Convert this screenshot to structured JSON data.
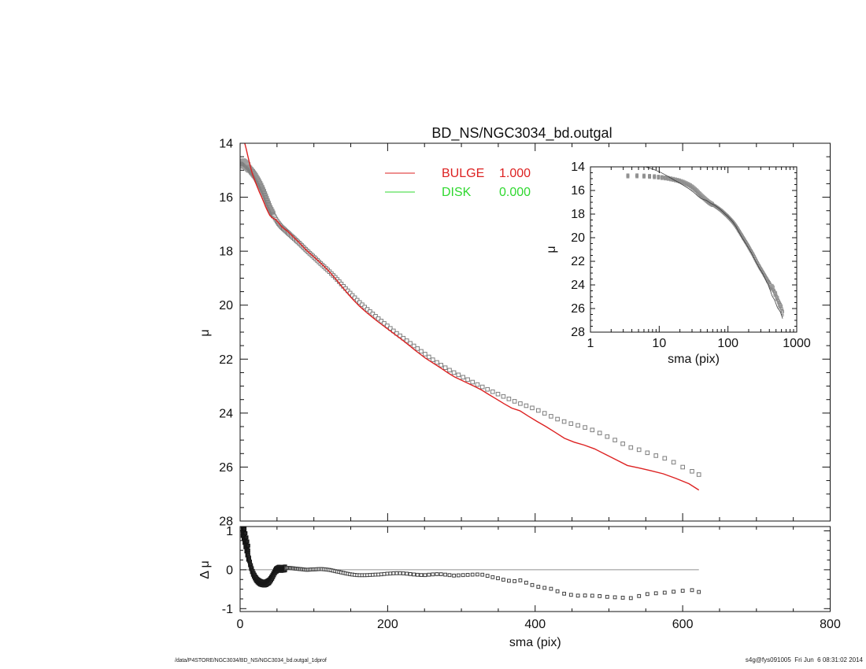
{
  "title": "BD_NS/NGC3034_bd.outgal",
  "footer": {
    "left": "/data/P4STORE/NGC3034/BD_NS/NGC3034_bd.outgal_1dprof",
    "right": "s4g@fys091005  Fri Jun  6 08:31:02 2014"
  },
  "colors": {
    "bulge": "#dd2222",
    "disk": "#2fd82f",
    "data_gray": "#7e7e7e",
    "residual_dark": "#3f3f3f",
    "axis": "#111111",
    "zero_line": "#909090",
    "inset_model": "#3c3c3c"
  },
  "legend": {
    "entries": [
      {
        "label": "BULGE",
        "value": "1.000",
        "color": "#dd2222"
      },
      {
        "label": "DISK",
        "value": "0.000",
        "color": "#2fd82f"
      }
    ]
  },
  "chart_data": [
    {
      "id": "main-profile",
      "type": "scatter",
      "title": "BD_NS/NGC3034_bd.outgal",
      "xlabel": "sma (pix)",
      "ylabel": "μ",
      "xlim": [
        0,
        800
      ],
      "ylim": [
        28,
        14
      ],
      "x_ticks": [
        0,
        200,
        400,
        600,
        800
      ],
      "y_ticks": [
        14,
        16,
        18,
        20,
        22,
        24,
        26,
        28
      ],
      "grid": false,
      "series": [
        {
          "name": "observed surface-brightness profile",
          "marker": "open-square",
          "color": "#7e7e7e",
          "points": [
            [
              1,
              14.82
            ],
            [
              3,
              14.77
            ],
            [
              5,
              14.76
            ],
            [
              8,
              14.82
            ],
            [
              10,
              14.88
            ],
            [
              13,
              14.96
            ],
            [
              16,
              15.06
            ],
            [
              20,
              15.2
            ],
            [
              24,
              15.38
            ],
            [
              28,
              15.58
            ],
            [
              32,
              15.82
            ],
            [
              36,
              16.1
            ],
            [
              40,
              16.38
            ],
            [
              44,
              16.6
            ],
            [
              48,
              16.8
            ],
            [
              52,
              16.97
            ],
            [
              56,
              17.1
            ],
            [
              60,
              17.2
            ],
            [
              70,
              17.45
            ],
            [
              80,
              17.7
            ],
            [
              90,
              17.97
            ],
            [
              100,
              18.22
            ],
            [
              110,
              18.48
            ],
            [
              120,
              18.73
            ],
            [
              130,
              19.0
            ],
            [
              140,
              19.3
            ],
            [
              150,
              19.58
            ],
            [
              160,
              19.85
            ],
            [
              170,
              20.1
            ],
            [
              180,
              20.33
            ],
            [
              190,
              20.56
            ],
            [
              200,
              20.78
            ],
            [
              210,
              21.0
            ],
            [
              220,
              21.2
            ],
            [
              230,
              21.4
            ],
            [
              240,
              21.6
            ],
            [
              250,
              21.8
            ],
            [
              260,
              22.0
            ],
            [
              270,
              22.18
            ],
            [
              280,
              22.35
            ],
            [
              290,
              22.5
            ],
            [
              300,
              22.64
            ],
            [
              310,
              22.78
            ],
            [
              320,
              22.92
            ],
            [
              330,
              23.05
            ],
            [
              340,
              23.18
            ],
            [
              350,
              23.3
            ],
            [
              360,
              23.42
            ],
            [
              370,
              23.54
            ],
            [
              380,
              23.65
            ],
            [
              390,
              23.75
            ],
            [
              400,
              23.85
            ],
            [
              410,
              23.97
            ],
            [
              420,
              24.1
            ],
            [
              430,
              24.22
            ],
            [
              440,
              24.32
            ],
            [
              450,
              24.4
            ],
            [
              460,
              24.47
            ],
            [
              470,
              24.55
            ],
            [
              480,
              24.65
            ],
            [
              490,
              24.77
            ],
            [
              500,
              24.9
            ],
            [
              510,
              25.02
            ],
            [
              520,
              25.15
            ],
            [
              530,
              25.28
            ],
            [
              540,
              25.35
            ],
            [
              550,
              25.45
            ],
            [
              560,
              25.55
            ],
            [
              570,
              25.62
            ],
            [
              580,
              25.72
            ],
            [
              590,
              25.85
            ],
            [
              600,
              26.0
            ],
            [
              610,
              26.12
            ],
            [
              622,
              26.28
            ]
          ]
        },
        {
          "name": "BULGE model",
          "style": "line",
          "color": "#dd2222",
          "definition": "observed minus residual (Δμ), clipped at μ = 14"
        }
      ]
    },
    {
      "id": "inset-log-profile",
      "type": "scatter",
      "xscale": "log",
      "xlabel": "sma (pix)",
      "ylabel": "μ",
      "xlim": [
        1,
        1000
      ],
      "ylim": [
        28,
        14
      ],
      "x_ticks": [
        1,
        10,
        100,
        1000
      ],
      "y_ticks": [
        14,
        16,
        18,
        20,
        22,
        24,
        26,
        28
      ],
      "grid": false,
      "series_note": "same observed profile and BULGE model as main panel, plotted on log x-axis with thin dark model line"
    },
    {
      "id": "residual",
      "type": "scatter",
      "xlabel": "sma (pix)",
      "ylabel": "Δ μ",
      "xlim": [
        0,
        800
      ],
      "ylim": [
        -1,
        1
      ],
      "x_ticks": [
        0,
        200,
        400,
        600,
        800
      ],
      "y_ticks": [
        -1,
        0,
        1
      ],
      "grid": false,
      "series": [
        {
          "name": "Δμ (data - model)",
          "marker": "open-square",
          "color": "#3f3f3f",
          "points": [
            [
              1,
              1.05
            ],
            [
              3,
              1.02
            ],
            [
              5,
              0.9
            ],
            [
              7,
              0.72
            ],
            [
              9,
              0.55
            ],
            [
              11,
              0.38
            ],
            [
              13,
              0.2
            ],
            [
              15,
              0.05
            ],
            [
              17,
              -0.07
            ],
            [
              19,
              -0.15
            ],
            [
              21,
              -0.22
            ],
            [
              24,
              -0.29
            ],
            [
              27,
              -0.33
            ],
            [
              30,
              -0.35
            ],
            [
              33,
              -0.36
            ],
            [
              36,
              -0.34
            ],
            [
              40,
              -0.29
            ],
            [
              44,
              -0.17
            ],
            [
              48,
              -0.02
            ],
            [
              52,
              0.03
            ],
            [
              56,
              0.02
            ],
            [
              60,
              0.03
            ],
            [
              65,
              0.05
            ],
            [
              70,
              0.04
            ],
            [
              75,
              0.03
            ],
            [
              80,
              0.02
            ],
            [
              90,
              0.0
            ],
            [
              100,
              0.01
            ],
            [
              110,
              0.02
            ],
            [
              120,
              0.0
            ],
            [
              130,
              -0.04
            ],
            [
              140,
              -0.08
            ],
            [
              150,
              -0.12
            ],
            [
              160,
              -0.14
            ],
            [
              170,
              -0.14
            ],
            [
              180,
              -0.13
            ],
            [
              190,
              -0.12
            ],
            [
              200,
              -0.1
            ],
            [
              210,
              -0.09
            ],
            [
              220,
              -0.09
            ],
            [
              230,
              -0.11
            ],
            [
              240,
              -0.13
            ],
            [
              250,
              -0.14
            ],
            [
              260,
              -0.12
            ],
            [
              270,
              -0.11
            ],
            [
              280,
              -0.13
            ],
            [
              290,
              -0.15
            ],
            [
              300,
              -0.14
            ],
            [
              310,
              -0.13
            ],
            [
              320,
              -0.12
            ],
            [
              330,
              -0.13
            ],
            [
              340,
              -0.18
            ],
            [
              350,
              -0.22
            ],
            [
              360,
              -0.27
            ],
            [
              370,
              -0.3
            ],
            [
              380,
              -0.27
            ],
            [
              390,
              -0.35
            ],
            [
              400,
              -0.42
            ],
            [
              410,
              -0.46
            ],
            [
              420,
              -0.48
            ],
            [
              430,
              -0.55
            ],
            [
              440,
              -0.62
            ],
            [
              450,
              -0.65
            ],
            [
              460,
              -0.67
            ],
            [
              470,
              -0.66
            ],
            [
              480,
              -0.67
            ],
            [
              490,
              -0.68
            ],
            [
              500,
              -0.7
            ],
            [
              510,
              -0.71
            ],
            [
              520,
              -0.72
            ],
            [
              530,
              -0.73
            ],
            [
              540,
              -0.68
            ],
            [
              550,
              -0.63
            ],
            [
              560,
              -0.61
            ],
            [
              570,
              -0.6
            ],
            [
              580,
              -0.58
            ],
            [
              590,
              -0.56
            ],
            [
              600,
              -0.54
            ],
            [
              610,
              -0.51
            ],
            [
              622,
              -0.57
            ]
          ]
        },
        {
          "name": "zero line",
          "style": "line",
          "color": "#909090",
          "y": 0,
          "x_extent": [
            0,
            622
          ]
        }
      ]
    }
  ]
}
